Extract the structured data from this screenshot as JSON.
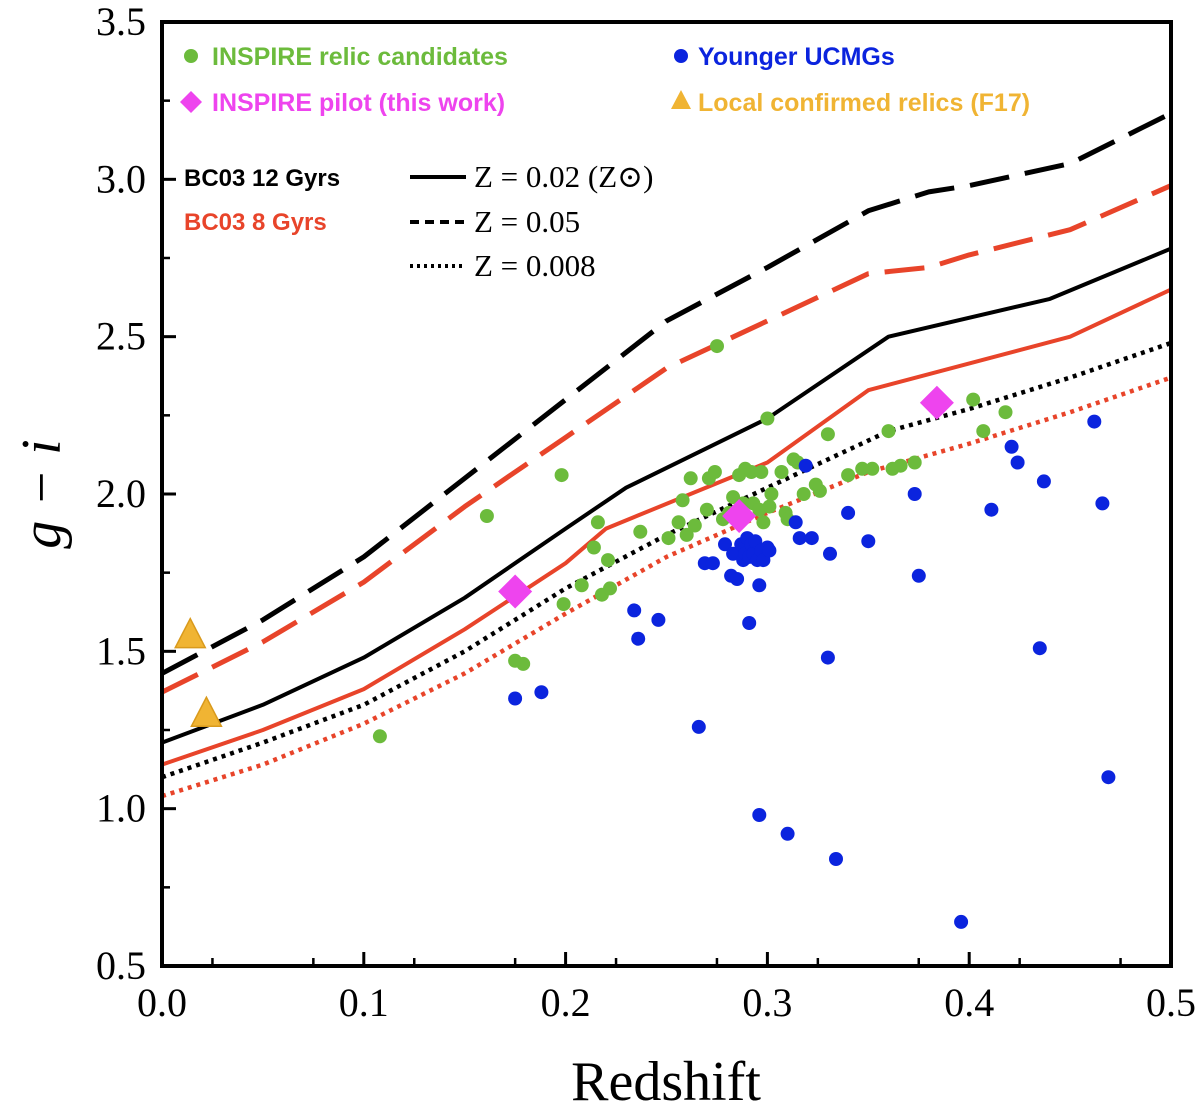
{
  "chart_data": {
    "type": "scatter",
    "xlabel": "Redshift",
    "ylabel": "g − i",
    "xlim": [
      0.0,
      0.5
    ],
    "ylim": [
      0.5,
      3.5
    ],
    "x_ticks": [
      "0.0",
      "0.1",
      "0.2",
      "0.3",
      "0.4",
      "0.5"
    ],
    "y_ticks": [
      "0.5",
      "1.0",
      "1.5",
      "2.0",
      "2.5",
      "3.0",
      "3.5"
    ],
    "colors": {
      "green": "#6cbb3c",
      "blue": "#0b24de",
      "magenta": "#ee44ee",
      "orange": "#f0b433",
      "black": "#000000",
      "red": "#e8442a"
    },
    "legend": [
      {
        "label": "INSPIRE relic candidates",
        "color": "#6cbb3c",
        "marker": "circle"
      },
      {
        "label": "Younger UCMGs",
        "color": "#0b24de",
        "marker": "circle"
      },
      {
        "label": "INSPIRE pilot (this work)",
        "color": "#ee44ee",
        "marker": "diamond"
      },
      {
        "label": "Local confirmed relics (F17)",
        "color": "#f0b433",
        "marker": "triangle"
      }
    ],
    "model_legend": {
      "ages": [
        {
          "label": "BC03 12 Gyrs",
          "color": "#000000"
        },
        {
          "label": "BC03 8 Gyrs",
          "color": "#e8442a"
        }
      ],
      "metallicities": [
        {
          "label": "Z = 0.02 (Z⊙)",
          "style": "solid"
        },
        {
          "label": "Z = 0.05",
          "style": "dashed"
        },
        {
          "label": "Z = 0.008",
          "style": "dotted"
        }
      ]
    },
    "lines": [
      {
        "name": "BC03 12 Gyrs Z=0.05",
        "color": "#000000",
        "style": "dashed",
        "x": [
          0.0,
          0.05,
          0.1,
          0.15,
          0.2,
          0.25,
          0.3,
          0.35,
          0.38,
          0.4,
          0.45,
          0.5
        ],
        "y": [
          1.43,
          1.6,
          1.8,
          2.05,
          2.3,
          2.55,
          2.72,
          2.9,
          2.96,
          2.98,
          3.05,
          3.21
        ]
      },
      {
        "name": "BC03 8 Gyrs Z=0.05",
        "color": "#e8442a",
        "style": "dashed",
        "x": [
          0.0,
          0.05,
          0.1,
          0.15,
          0.2,
          0.25,
          0.3,
          0.35,
          0.38,
          0.4,
          0.45,
          0.5
        ],
        "y": [
          1.37,
          1.53,
          1.72,
          1.96,
          2.18,
          2.4,
          2.55,
          2.7,
          2.72,
          2.76,
          2.84,
          2.98
        ]
      },
      {
        "name": "BC03 12 Gyrs Z=0.02",
        "color": "#000000",
        "style": "solid",
        "x": [
          0.0,
          0.05,
          0.1,
          0.15,
          0.2,
          0.23,
          0.3,
          0.36,
          0.44,
          0.5
        ],
        "y": [
          1.21,
          1.33,
          1.48,
          1.67,
          1.89,
          2.02,
          2.24,
          2.5,
          2.62,
          2.78
        ]
      },
      {
        "name": "BC03 8 Gyrs Z=0.02",
        "color": "#e8442a",
        "style": "solid",
        "x": [
          0.0,
          0.05,
          0.1,
          0.15,
          0.2,
          0.22,
          0.3,
          0.35,
          0.45,
          0.5
        ],
        "y": [
          1.14,
          1.25,
          1.38,
          1.57,
          1.78,
          1.89,
          2.1,
          2.33,
          2.5,
          2.65
        ]
      },
      {
        "name": "BC03 12 Gyrs Z=0.008",
        "color": "#000000",
        "style": "dotted",
        "x": [
          0.0,
          0.05,
          0.1,
          0.15,
          0.2,
          0.25,
          0.3,
          0.36,
          0.4,
          0.45,
          0.5
        ],
        "y": [
          1.1,
          1.21,
          1.33,
          1.5,
          1.7,
          1.87,
          2.02,
          2.2,
          2.27,
          2.37,
          2.48
        ]
      },
      {
        "name": "BC03 8 Gyrs Z=0.008",
        "color": "#e8442a",
        "style": "dotted",
        "x": [
          0.0,
          0.05,
          0.1,
          0.15,
          0.2,
          0.25,
          0.3,
          0.35,
          0.4,
          0.45,
          0.5
        ],
        "y": [
          1.04,
          1.14,
          1.27,
          1.43,
          1.62,
          1.8,
          1.94,
          2.07,
          2.16,
          2.26,
          2.37
        ]
      }
    ],
    "series": [
      {
        "name": "INSPIRE relic candidates",
        "marker": "circle",
        "color": "#6cbb3c",
        "points": [
          [
            0.108,
            1.23
          ],
          [
            0.161,
            1.93
          ],
          [
            0.175,
            1.47
          ],
          [
            0.179,
            1.46
          ],
          [
            0.198,
            2.06
          ],
          [
            0.199,
            1.65
          ],
          [
            0.208,
            1.71
          ],
          [
            0.214,
            1.83
          ],
          [
            0.216,
            1.91
          ],
          [
            0.218,
            1.68
          ],
          [
            0.221,
            1.79
          ],
          [
            0.222,
            1.7
          ],
          [
            0.237,
            1.88
          ],
          [
            0.251,
            1.86
          ],
          [
            0.256,
            1.91
          ],
          [
            0.258,
            1.98
          ],
          [
            0.26,
            1.87
          ],
          [
            0.262,
            2.05
          ],
          [
            0.264,
            1.9
          ],
          [
            0.27,
            1.95
          ],
          [
            0.271,
            2.05
          ],
          [
            0.274,
            2.07
          ],
          [
            0.275,
            2.47
          ],
          [
            0.278,
            1.92
          ],
          [
            0.281,
            1.94
          ],
          [
            0.283,
            1.99
          ],
          [
            0.286,
            2.06
          ],
          [
            0.288,
            1.97
          ],
          [
            0.289,
            2.08
          ],
          [
            0.292,
            2.07
          ],
          [
            0.293,
            1.97
          ],
          [
            0.296,
            1.95
          ],
          [
            0.297,
            2.07
          ],
          [
            0.298,
            1.91
          ],
          [
            0.3,
            2.24
          ],
          [
            0.301,
            1.96
          ],
          [
            0.302,
            2.0
          ],
          [
            0.307,
            2.07
          ],
          [
            0.309,
            1.94
          ],
          [
            0.31,
            1.92
          ],
          [
            0.313,
            2.11
          ],
          [
            0.315,
            2.1
          ],
          [
            0.318,
            2.0
          ],
          [
            0.324,
            2.03
          ],
          [
            0.326,
            2.01
          ],
          [
            0.33,
            2.19
          ],
          [
            0.34,
            2.06
          ],
          [
            0.347,
            2.08
          ],
          [
            0.352,
            2.08
          ],
          [
            0.36,
            2.2
          ],
          [
            0.362,
            2.08
          ],
          [
            0.366,
            2.09
          ],
          [
            0.373,
            2.1
          ],
          [
            0.402,
            2.3
          ],
          [
            0.407,
            2.2
          ],
          [
            0.418,
            2.26
          ]
        ]
      },
      {
        "name": "Younger UCMGs",
        "marker": "circle",
        "color": "#0b24de",
        "points": [
          [
            0.175,
            1.35
          ],
          [
            0.188,
            1.37
          ],
          [
            0.234,
            1.63
          ],
          [
            0.236,
            1.54
          ],
          [
            0.246,
            1.6
          ],
          [
            0.266,
            1.26
          ],
          [
            0.269,
            1.78
          ],
          [
            0.273,
            1.78
          ],
          [
            0.279,
            1.84
          ],
          [
            0.282,
            1.74
          ],
          [
            0.283,
            1.81
          ],
          [
            0.285,
            1.73
          ],
          [
            0.287,
            1.84
          ],
          [
            0.288,
            1.79
          ],
          [
            0.289,
            1.81
          ],
          [
            0.29,
            1.86
          ],
          [
            0.291,
            1.8
          ],
          [
            0.291,
            1.59
          ],
          [
            0.292,
            1.84
          ],
          [
            0.293,
            1.81
          ],
          [
            0.294,
            1.85
          ],
          [
            0.295,
            1.79
          ],
          [
            0.296,
            1.71
          ],
          [
            0.296,
            0.98
          ],
          [
            0.297,
            1.82
          ],
          [
            0.298,
            1.79
          ],
          [
            0.3,
            1.83
          ],
          [
            0.301,
            1.82
          ],
          [
            0.31,
            0.92
          ],
          [
            0.314,
            1.91
          ],
          [
            0.316,
            1.86
          ],
          [
            0.319,
            2.09
          ],
          [
            0.322,
            1.86
          ],
          [
            0.33,
            1.48
          ],
          [
            0.331,
            1.81
          ],
          [
            0.334,
            0.84
          ],
          [
            0.34,
            1.94
          ],
          [
            0.35,
            1.85
          ],
          [
            0.373,
            2.0
          ],
          [
            0.375,
            1.74
          ],
          [
            0.396,
            0.64
          ],
          [
            0.411,
            1.95
          ],
          [
            0.421,
            2.15
          ],
          [
            0.424,
            2.1
          ],
          [
            0.437,
            2.04
          ],
          [
            0.435,
            1.51
          ],
          [
            0.462,
            2.23
          ],
          [
            0.466,
            1.97
          ],
          [
            0.469,
            1.1
          ]
        ]
      },
      {
        "name": "INSPIRE pilot (this work)",
        "marker": "diamond",
        "color": "#ee44ee",
        "points": [
          [
            0.175,
            1.69
          ],
          [
            0.286,
            1.93
          ],
          [
            0.384,
            2.29
          ]
        ]
      },
      {
        "name": "Local confirmed relics (F17)",
        "marker": "triangle",
        "color": "#f0b433",
        "points": [
          [
            0.014,
            1.55
          ],
          [
            0.022,
            1.3
          ]
        ]
      }
    ]
  }
}
